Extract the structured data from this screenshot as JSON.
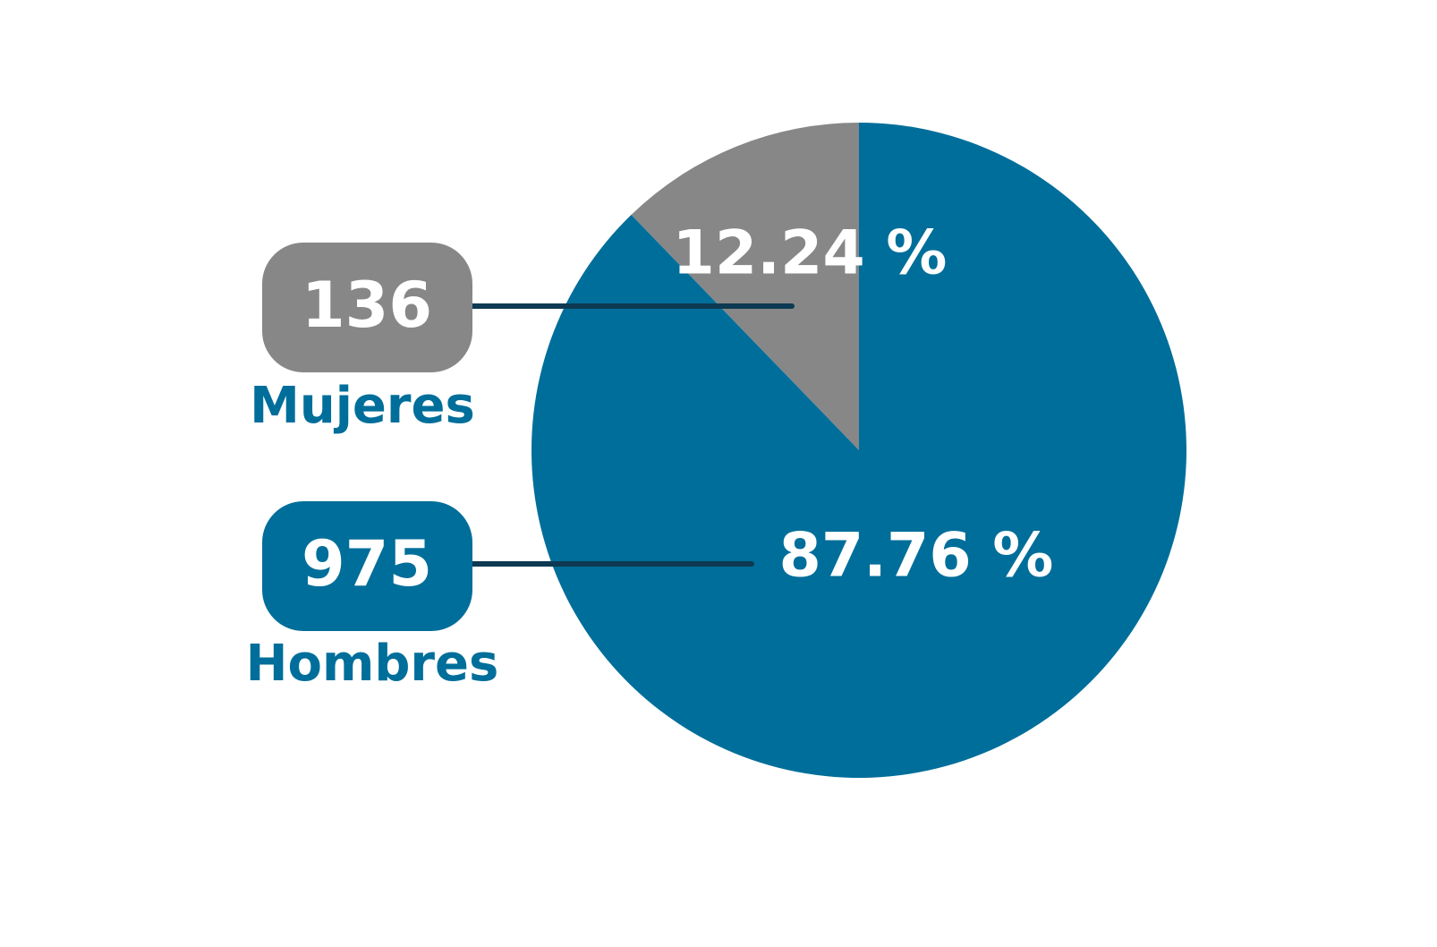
{
  "chart_data": {
    "type": "pie",
    "categories": [
      "Mujeres",
      "Hombres"
    ],
    "values": [
      12.24,
      87.76
    ],
    "value_labels": [
      "12.24 %",
      "87.76 %"
    ],
    "counts": [
      136,
      975
    ],
    "colors": [
      "#878787",
      "#006e9a"
    ]
  }
}
